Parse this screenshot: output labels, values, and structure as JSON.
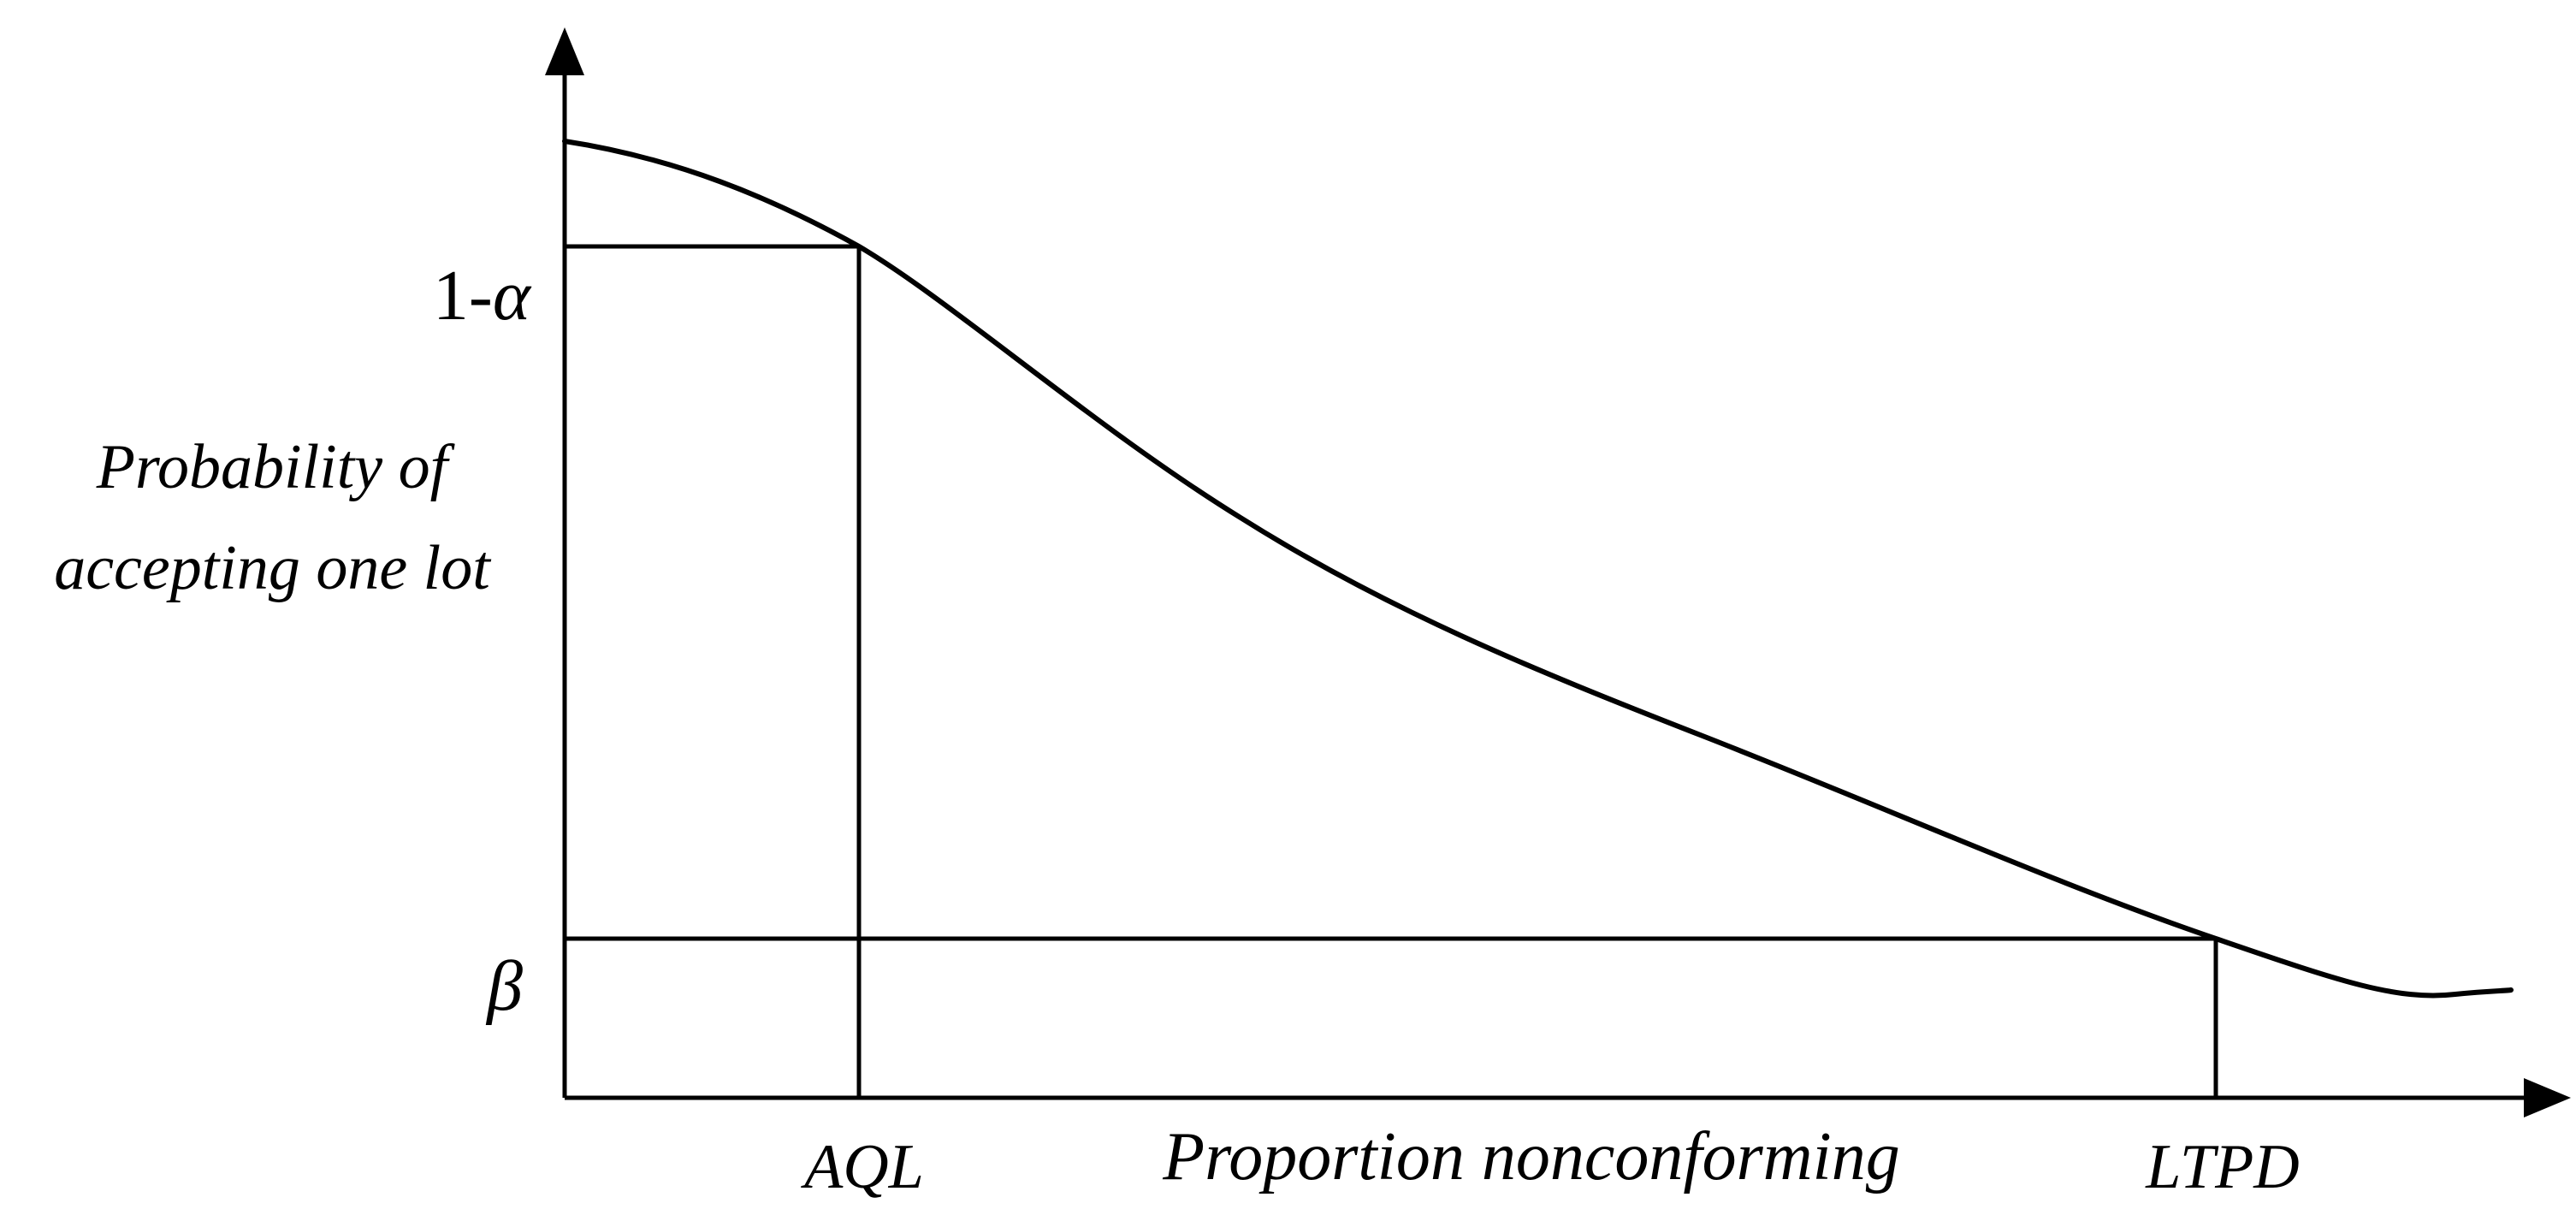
{
  "diagram": {
    "type": "operating-characteristic-curve",
    "y_axis_label": {
      "line1": "Probability of",
      "line2": "accepting one lot"
    },
    "x_axis_label": "Proportion nonconforming",
    "y_levels": {
      "upper": "1-α",
      "upper_prefix": "1-",
      "upper_symbol": "α",
      "lower": "β"
    },
    "x_points": {
      "left": "AQL",
      "right": "LTPD"
    },
    "colors": {
      "line": "#000000",
      "background": "#ffffff"
    }
  }
}
